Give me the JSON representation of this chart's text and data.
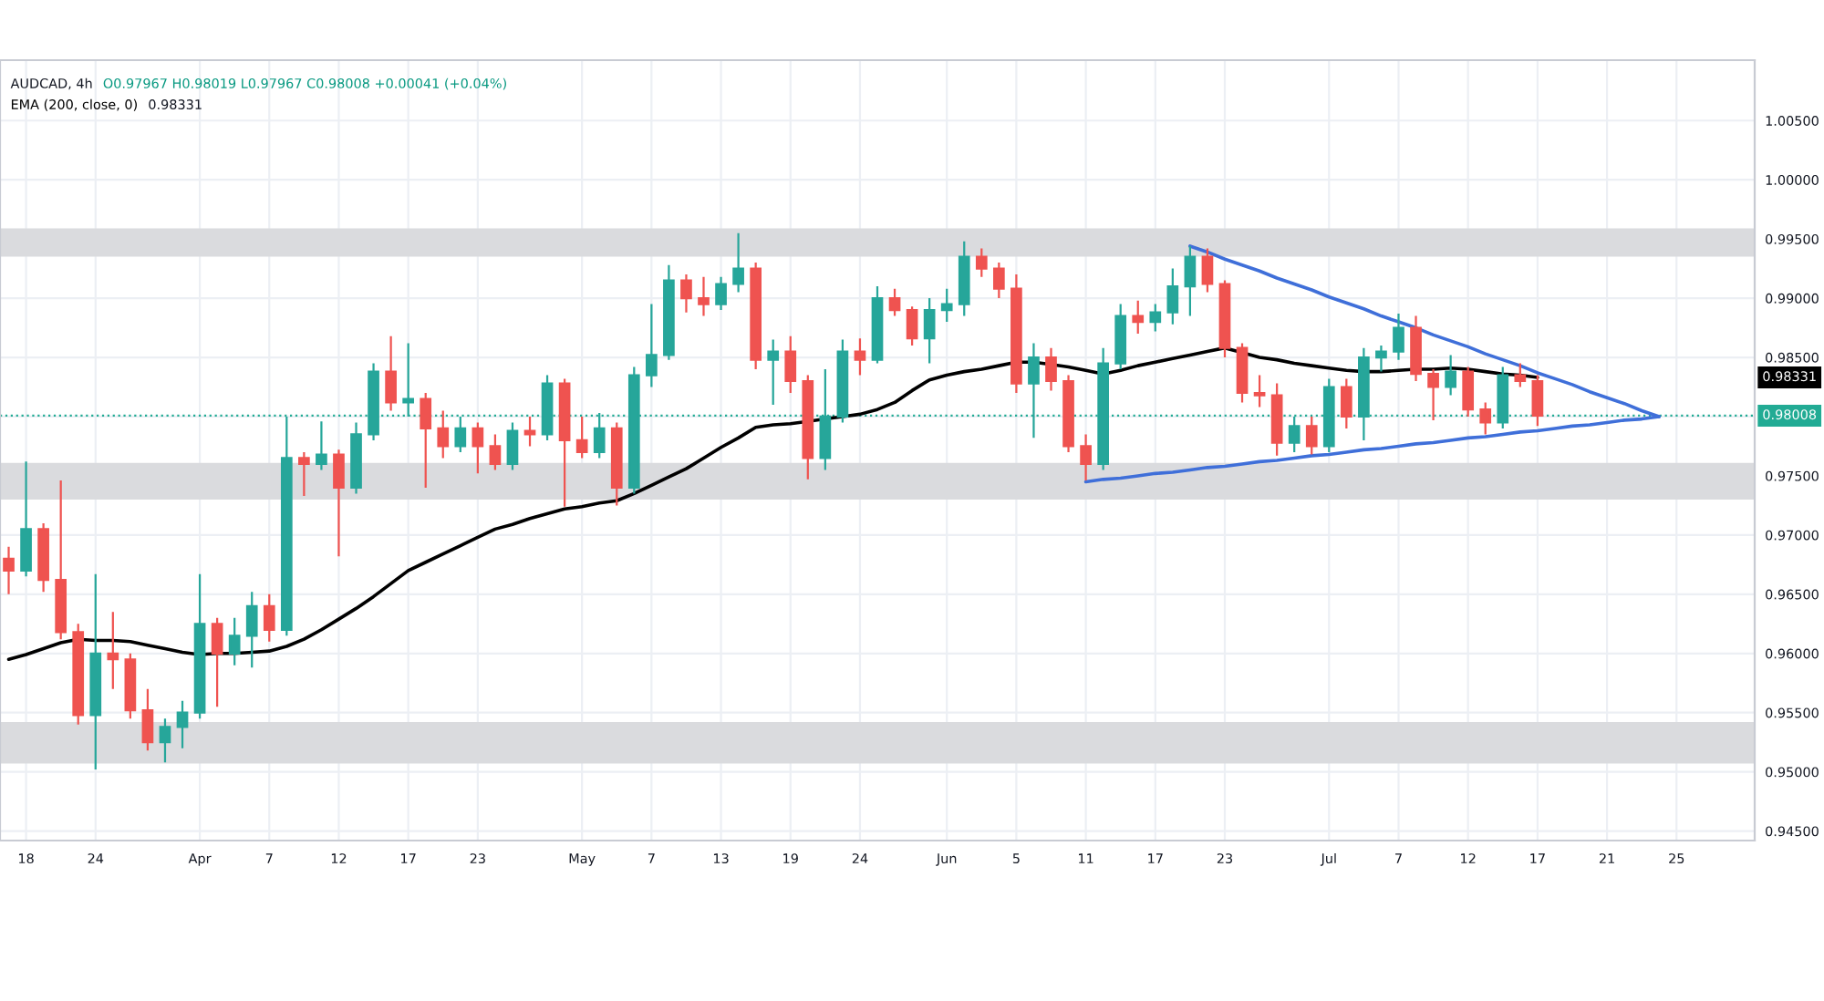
{
  "chart_data": {
    "type": "candlestick",
    "title": "AUDCAD, 4h",
    "annotations": [
      "O0.97967 H0.98019 L0.97967 C0.98008 +0.00041 (+0.04%)",
      "0.98331",
      "0.98331"
    ],
    "categories": [
      null,
      "18",
      null,
      null,
      null,
      "24",
      null,
      null,
      null,
      null,
      null,
      "Apr",
      null,
      null,
      null,
      "7",
      null,
      null,
      null,
      "12",
      null,
      null,
      null,
      "17",
      null,
      null,
      null,
      "23",
      null,
      null,
      null,
      null,
      null,
      "May",
      null,
      null,
      null,
      "7",
      null,
      null,
      null,
      "13",
      null,
      null,
      null,
      "19",
      null,
      null,
      null,
      "24",
      null,
      null,
      null,
      null,
      "Jun",
      null,
      null,
      null,
      "5",
      null,
      null,
      null,
      "11",
      null,
      null,
      null,
      "17",
      null,
      null,
      null,
      "23",
      null,
      null,
      null,
      null,
      null,
      "Jul",
      null,
      null,
      null,
      "7",
      null,
      null,
      null,
      "12",
      null,
      null,
      null,
      "17",
      null,
      null,
      null,
      "21",
      null,
      null,
      null,
      "25",
      null,
      null,
      null,
      null
    ],
    "ohlc": [
      [
        0.968,
        0.969,
        0.965,
        0.967
      ],
      [
        0.967,
        0.9762,
        0.9665,
        0.9705
      ],
      [
        0.9705,
        0.971,
        0.9652,
        0.9662
      ],
      [
        0.9662,
        0.9746,
        0.9612,
        0.9618
      ],
      [
        0.9618,
        0.9625,
        0.954,
        0.9548
      ],
      [
        0.9548,
        0.9667,
        0.9502,
        0.96
      ],
      [
        0.96,
        0.9635,
        0.957,
        0.9595
      ],
      [
        0.9595,
        0.96,
        0.9545,
        0.9552
      ],
      [
        0.9552,
        0.957,
        0.9518,
        0.9525
      ],
      [
        0.9525,
        0.9545,
        0.9508,
        0.9538
      ],
      [
        0.9538,
        0.956,
        0.952,
        0.955
      ],
      [
        0.955,
        0.9667,
        0.9545,
        0.9625
      ],
      [
        0.9625,
        0.963,
        0.9555,
        0.96
      ],
      [
        0.96,
        0.963,
        0.959,
        0.9615
      ],
      [
        0.9615,
        0.9652,
        0.9588,
        0.964
      ],
      [
        0.964,
        0.965,
        0.961,
        0.962
      ],
      [
        0.962,
        0.98,
        0.9615,
        0.9765
      ],
      [
        0.9765,
        0.977,
        0.9733,
        0.976
      ],
      [
        0.976,
        0.9796,
        0.9755,
        0.9768
      ],
      [
        0.9768,
        0.9772,
        0.9682,
        0.974
      ],
      [
        0.974,
        0.9795,
        0.9735,
        0.9785
      ],
      [
        0.9785,
        0.9845,
        0.978,
        0.9838
      ],
      [
        0.9838,
        0.9868,
        0.9805,
        0.9812
      ],
      [
        0.9812,
        0.9862,
        0.98,
        0.9815
      ],
      [
        0.9815,
        0.982,
        0.974,
        0.979
      ],
      [
        0.979,
        0.9805,
        0.9765,
        0.9775
      ],
      [
        0.9775,
        0.98,
        0.977,
        0.979
      ],
      [
        0.979,
        0.9795,
        0.9752,
        0.9775
      ],
      [
        0.9775,
        0.9785,
        0.9755,
        0.976
      ],
      [
        0.976,
        0.9795,
        0.9755,
        0.9788
      ],
      [
        0.9788,
        0.98,
        0.9775,
        0.9785
      ],
      [
        0.9785,
        0.9835,
        0.978,
        0.9828
      ],
      [
        0.9828,
        0.9832,
        0.9724,
        0.978
      ],
      [
        0.978,
        0.98,
        0.9765,
        0.977
      ],
      [
        0.977,
        0.9803,
        0.9765,
        0.979
      ],
      [
        0.979,
        0.9795,
        0.9725,
        0.974
      ],
      [
        0.974,
        0.9842,
        0.9735,
        0.9835
      ],
      [
        0.9835,
        0.9895,
        0.9825,
        0.9852
      ],
      [
        0.9852,
        0.9928,
        0.9848,
        0.9915
      ],
      [
        0.9915,
        0.992,
        0.9888,
        0.99
      ],
      [
        0.99,
        0.9918,
        0.9885,
        0.9895
      ],
      [
        0.9895,
        0.9918,
        0.989,
        0.9912
      ],
      [
        0.9912,
        0.9955,
        0.9905,
        0.9925
      ],
      [
        0.9925,
        0.993,
        0.984,
        0.9848
      ],
      [
        0.9848,
        0.9865,
        0.981,
        0.9855
      ],
      [
        0.9855,
        0.9868,
        0.982,
        0.983
      ],
      [
        0.983,
        0.9835,
        0.9747,
        0.9765
      ],
      [
        0.9765,
        0.984,
        0.9755,
        0.98
      ],
      [
        0.98,
        0.9865,
        0.9795,
        0.9855
      ],
      [
        0.9855,
        0.9866,
        0.9835,
        0.9848
      ],
      [
        0.9848,
        0.991,
        0.9845,
        0.99
      ],
      [
        0.99,
        0.9908,
        0.9885,
        0.989
      ],
      [
        0.989,
        0.9893,
        0.986,
        0.9866
      ],
      [
        0.9866,
        0.99,
        0.9845,
        0.989
      ],
      [
        0.989,
        0.9908,
        0.988,
        0.9895
      ],
      [
        0.9895,
        0.9948,
        0.9885,
        0.9935
      ],
      [
        0.9935,
        0.9942,
        0.9918,
        0.9925
      ],
      [
        0.9925,
        0.993,
        0.99,
        0.9908
      ],
      [
        0.9908,
        0.992,
        0.982,
        0.9828
      ],
      [
        0.9828,
        0.9862,
        0.9782,
        0.985
      ],
      [
        0.985,
        0.9858,
        0.9822,
        0.983
      ],
      [
        0.983,
        0.9835,
        0.977,
        0.9775
      ],
      [
        0.9775,
        0.9785,
        0.9746,
        0.976
      ],
      [
        0.976,
        0.9858,
        0.9755,
        0.9845
      ],
      [
        0.9845,
        0.9895,
        0.984,
        0.9885
      ],
      [
        0.9885,
        0.9898,
        0.987,
        0.988
      ],
      [
        0.988,
        0.9895,
        0.9872,
        0.9888
      ],
      [
        0.9888,
        0.9925,
        0.9878,
        0.991
      ],
      [
        0.991,
        0.9944,
        0.9885,
        0.9935
      ],
      [
        0.9935,
        0.9942,
        0.9905,
        0.9912
      ],
      [
        0.9912,
        0.9915,
        0.985,
        0.9858
      ],
      [
        0.9858,
        0.9862,
        0.9812,
        0.982
      ],
      [
        0.982,
        0.9835,
        0.9808,
        0.9818
      ],
      [
        0.9818,
        0.9828,
        0.9767,
        0.9778
      ],
      [
        0.9778,
        0.98,
        0.977,
        0.9792
      ],
      [
        0.9792,
        0.98,
        0.9768,
        0.9775
      ],
      [
        0.9775,
        0.9832,
        0.977,
        0.9825
      ],
      [
        0.9825,
        0.9832,
        0.979,
        0.98
      ],
      [
        0.98,
        0.9858,
        0.978,
        0.985
      ],
      [
        0.985,
        0.986,
        0.9838,
        0.9855
      ],
      [
        0.9855,
        0.9887,
        0.9848,
        0.9875
      ],
      [
        0.9875,
        0.9885,
        0.983,
        0.9836
      ],
      [
        0.9836,
        0.984,
        0.9797,
        0.9825
      ],
      [
        0.9825,
        0.9852,
        0.9818,
        0.9838
      ],
      [
        0.9838,
        0.9842,
        0.98,
        0.9806
      ],
      [
        0.9806,
        0.9812,
        0.9785,
        0.9795
      ],
      [
        0.9795,
        0.9842,
        0.979,
        0.9835
      ],
      [
        0.9835,
        0.9845,
        0.9825,
        0.983
      ],
      [
        0.983,
        0.9835,
        0.9792,
        0.98008
      ],
      null,
      null,
      null,
      null,
      null,
      null,
      null,
      null,
      null,
      null,
      null,
      null
    ],
    "colors": [
      "#ef5350",
      "#26a69a",
      "#ef5350",
      "#ef5350",
      "#ef5350",
      "#26a69a",
      "#ef5350",
      "#ef5350",
      "#ef5350",
      "#26a69a",
      "#26a69a",
      "#26a69a",
      "#ef5350",
      "#26a69a",
      "#26a69a",
      "#ef5350",
      "#26a69a",
      "#ef5350",
      "#26a69a",
      "#ef5350",
      "#26a69a",
      "#26a69a",
      "#ef5350",
      "#26a69a",
      "#ef5350",
      "#ef5350",
      "#26a69a",
      "#ef5350",
      "#ef5350",
      "#26a69a",
      "#ef5350",
      "#26a69a",
      "#ef5350",
      "#ef5350",
      "#26a69a",
      "#ef5350",
      "#26a69a",
      "#26a69a",
      "#26a69a",
      "#ef5350",
      "#ef5350",
      "#26a69a",
      "#26a69a",
      "#ef5350",
      "#26a69a",
      "#ef5350",
      "#ef5350",
      "#26a69a",
      "#26a69a",
      "#ef5350",
      "#26a69a",
      "#ef5350",
      "#ef5350",
      "#26a69a",
      "#26a69a",
      "#26a69a",
      "#ef5350",
      "#ef5350",
      "#ef5350",
      "#26a69a",
      "#ef5350",
      "#ef5350",
      "#ef5350",
      "#26a69a",
      "#26a69a",
      "#ef5350",
      "#26a69a",
      "#26a69a",
      "#26a69a",
      "#ef5350",
      "#ef5350",
      "#ef5350",
      "#ef5350",
      "#ef5350",
      "#26a69a",
      "#ef5350",
      "#26a69a",
      "#ef5350",
      "#26a69a",
      "#26a69a",
      "#26a69a",
      "#ef5350",
      "#ef5350",
      "#26a69a",
      "#ef5350",
      "#ef5350",
      "#26a69a",
      "#ef5350",
      "#ef5350",
      null,
      null,
      null,
      null,
      null,
      null,
      null,
      null,
      null,
      null,
      null,
      null
    ],
    "series": [
      {
        "name": "EMA (200, close, 0)",
        "type": "line",
        "color": "#000000",
        "values": [
          0.9595,
          0.9599,
          0.9604,
          0.9609,
          0.9612,
          0.9611,
          0.9611,
          0.961,
          0.9607,
          0.9604,
          0.9601,
          0.9599,
          0.96,
          0.96,
          0.9601,
          0.9602,
          0.9606,
          0.9612,
          0.962,
          0.9629,
          0.9638,
          0.9648,
          0.9659,
          0.967,
          0.9677,
          0.9684,
          0.9691,
          0.9698,
          0.9705,
          0.9709,
          0.9714,
          0.9718,
          0.9722,
          0.9724,
          0.9727,
          0.9729,
          0.9735,
          0.9742,
          0.9749,
          0.9756,
          0.9765,
          0.9774,
          0.9782,
          0.9791,
          0.9793,
          0.9794,
          0.9796,
          0.9798,
          0.98,
          0.9802,
          0.9806,
          0.9812,
          0.9822,
          0.9831,
          0.9835,
          0.9838,
          0.984,
          0.9843,
          0.9846,
          0.9846,
          0.9844,
          0.9842,
          0.9839,
          0.9836,
          0.9839,
          0.9843,
          0.9846,
          0.9849,
          0.9852,
          0.9855,
          0.9858,
          0.9854,
          0.985,
          0.9848,
          0.9845,
          0.9843,
          0.9841,
          0.9839,
          0.9838,
          0.9838,
          0.9839,
          0.984,
          0.984,
          0.9841,
          0.984,
          0.9838,
          0.9836,
          0.9835,
          0.98331,
          null,
          null,
          null,
          null,
          null,
          null,
          null,
          null,
          null,
          null,
          null,
          null
        ]
      },
      {
        "type": "line",
        "color": "#3f6fd9",
        "values": [
          null,
          null,
          null,
          null,
          null,
          null,
          null,
          null,
          null,
          null,
          null,
          null,
          null,
          null,
          null,
          null,
          null,
          null,
          null,
          null,
          null,
          null,
          null,
          null,
          null,
          null,
          null,
          null,
          null,
          null,
          null,
          null,
          null,
          null,
          null,
          null,
          null,
          null,
          null,
          null,
          null,
          null,
          null,
          null,
          null,
          null,
          null,
          null,
          null,
          null,
          null,
          null,
          null,
          null,
          null,
          null,
          null,
          null,
          null,
          null,
          null,
          null,
          null,
          null,
          null,
          null,
          null,
          null,
          0.9944,
          0.9939,
          0.9933,
          0.9928,
          0.9923,
          0.9917,
          0.9912,
          0.9907,
          0.9901,
          0.9896,
          0.9891,
          0.9885,
          0.988,
          0.9875,
          0.9869,
          0.9864,
          0.9859,
          0.9853,
          0.9848,
          0.9843,
          0.9837,
          0.9832,
          0.9827,
          0.9821,
          0.9816,
          0.9811,
          0.9805,
          0.98,
          null,
          null,
          null,
          null,
          null
        ]
      },
      {
        "type": "line",
        "color": "#3f6fd9",
        "values": [
          null,
          null,
          null,
          null,
          null,
          null,
          null,
          null,
          null,
          null,
          null,
          null,
          null,
          null,
          null,
          null,
          null,
          null,
          null,
          null,
          null,
          null,
          null,
          null,
          null,
          null,
          null,
          null,
          null,
          null,
          null,
          null,
          null,
          null,
          null,
          null,
          null,
          null,
          null,
          null,
          null,
          null,
          null,
          null,
          null,
          null,
          null,
          null,
          null,
          null,
          null,
          null,
          null,
          null,
          null,
          null,
          null,
          null,
          null,
          null,
          null,
          null,
          0.9745,
          0.9747,
          0.9748,
          0.975,
          0.9752,
          0.9753,
          0.9755,
          0.9757,
          0.9758,
          0.976,
          0.9762,
          0.9763,
          0.9765,
          0.9767,
          0.9768,
          0.977,
          0.9772,
          0.9773,
          0.9775,
          0.9777,
          0.9778,
          0.978,
          0.9782,
          0.9783,
          0.9785,
          0.9787,
          0.9788,
          0.979,
          0.9792,
          0.9793,
          0.9795,
          0.9797,
          0.9798,
          0.98,
          null,
          null,
          null,
          null,
          null
        ]
      }
    ],
    "bands": [
      {
        "axis": "y",
        "from": 0.9935,
        "to": 0.9959,
        "color": "#dadbde"
      },
      {
        "axis": "y",
        "from": 0.973,
        "to": 0.9761,
        "color": "#dadbde"
      },
      {
        "axis": "y",
        "from": 0.9507,
        "to": 0.9542,
        "color": "#dadbde"
      }
    ],
    "ref_lines": [
      {
        "axis": "y",
        "value": 0.98008,
        "label": "0.98008",
        "color": "#22ab94",
        "line_style": "dotted"
      }
    ],
    "ylim": [
      0.9442,
      1.0101
    ],
    "yticks": [
      {
        "value": 1.005,
        "label": "1.00500"
      },
      {
        "value": 1.0,
        "label": "1.00000"
      },
      {
        "value": 0.995,
        "label": "0.99500"
      },
      {
        "value": 0.99,
        "label": "0.99000"
      },
      {
        "value": 0.985,
        "label": "0.98500"
      },
      {
        "value": 0.98,
        "label": null
      },
      {
        "value": 0.975,
        "label": "0.97500"
      },
      {
        "value": 0.97,
        "label": "0.97000"
      },
      {
        "value": 0.965,
        "label": "0.96500"
      },
      {
        "value": 0.96,
        "label": "0.96000"
      },
      {
        "value": 0.955,
        "label": "0.95500"
      },
      {
        "value": 0.95,
        "label": "0.95000"
      },
      {
        "value": 0.945,
        "label": "0.94500"
      }
    ],
    "grid": true
  }
}
